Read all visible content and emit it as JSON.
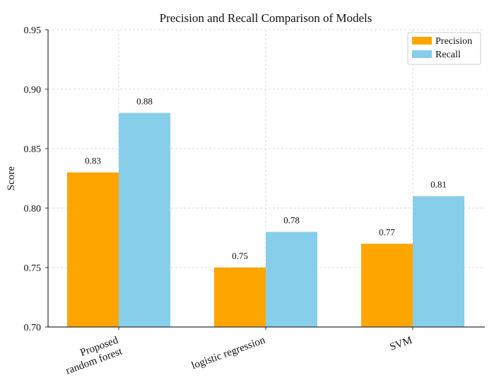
{
  "chart_data": {
    "type": "bar",
    "title": "Precision and Recall Comparison of Models",
    "xlabel": "",
    "ylabel": "Score",
    "categories": [
      [
        "Proposed",
        "random forest"
      ],
      [
        "logistic regression"
      ],
      [
        "SVM"
      ]
    ],
    "series": [
      {
        "name": "Precision",
        "color": "#FFA500",
        "values": [
          0.83,
          0.75,
          0.77
        ],
        "labels": [
          "0.83",
          "0.75",
          "0.77"
        ]
      },
      {
        "name": "Recall",
        "color": "#87CEEB",
        "values": [
          0.88,
          0.78,
          0.81
        ],
        "labels": [
          "0.88",
          "0.78",
          "0.81"
        ]
      }
    ],
    "ylim": [
      0.7,
      0.95
    ],
    "yticks": [
      "0.70",
      "0.75",
      "0.80",
      "0.85",
      "0.90",
      "0.95"
    ],
    "grid": true,
    "legend_position": "top-right"
  }
}
